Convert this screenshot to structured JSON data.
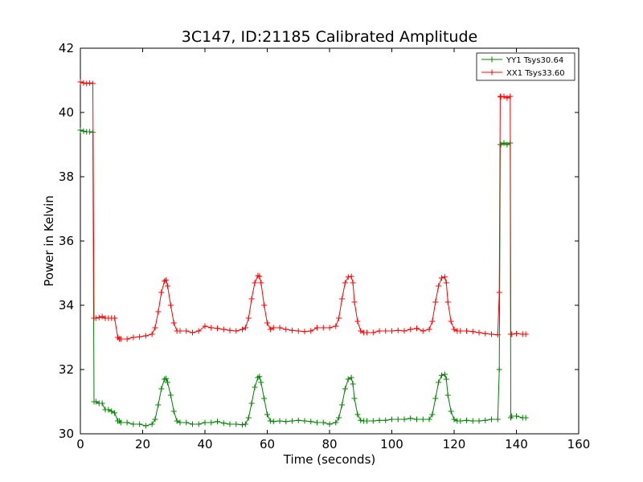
{
  "chart_data": {
    "type": "line",
    "title": "3C147, ID:21185 Calibrated Amplitude",
    "xlabel": "Time (seconds)",
    "ylabel": "Power in Kelvin",
    "xlim": [
      0,
      160
    ],
    "ylim": [
      30,
      42
    ],
    "xticks": [
      "0",
      "20",
      "40",
      "60",
      "80",
      "100",
      "120",
      "140",
      "160"
    ],
    "yticks": [
      "30",
      "32",
      "34",
      "36",
      "38",
      "40",
      "42"
    ],
    "grid": false,
    "legend_position": "top-right",
    "series": [
      {
        "name": "YY1 Tsys30.64",
        "color": "#008000",
        "marker": "+",
        "x": [
          0,
          1,
          2,
          3,
          4,
          4.4,
          5,
          6,
          7,
          8,
          9,
          10,
          11,
          12,
          12.5,
          13,
          15,
          17,
          19,
          21,
          23,
          24,
          25,
          26,
          27,
          27.5,
          28,
          29,
          30,
          31,
          32,
          34,
          36,
          38,
          40,
          42,
          44,
          46,
          48,
          50,
          52,
          53,
          54,
          55,
          56,
          57,
          57.5,
          58,
          59,
          60,
          61,
          62,
          64,
          66,
          68,
          70,
          72,
          74,
          76,
          78,
          80,
          82,
          83,
          84,
          85,
          86,
          87,
          87.5,
          88,
          89,
          90,
          91,
          92,
          94,
          96,
          98,
          100,
          102,
          104,
          106,
          108,
          110,
          112,
          113,
          114,
          115,
          116,
          117,
          117.5,
          118,
          119,
          120,
          121,
          122,
          124,
          126,
          128,
          130,
          132,
          134,
          134.5,
          134.8,
          135,
          136,
          137,
          138,
          138.2,
          138.5,
          140,
          142,
          143
        ],
        "y": [
          39.45,
          39.42,
          39.4,
          39.4,
          39.38,
          31.0,
          31.0,
          30.95,
          30.95,
          30.75,
          30.75,
          30.7,
          30.65,
          30.4,
          30.4,
          30.35,
          30.35,
          30.3,
          30.3,
          30.25,
          30.3,
          30.45,
          30.9,
          31.4,
          31.7,
          31.72,
          31.6,
          31.2,
          30.7,
          30.4,
          30.35,
          30.35,
          30.3,
          30.3,
          30.35,
          30.35,
          30.38,
          30.33,
          30.3,
          30.3,
          30.28,
          30.3,
          30.5,
          30.95,
          31.45,
          31.75,
          31.78,
          31.6,
          31.1,
          30.6,
          30.4,
          30.38,
          30.4,
          30.38,
          30.4,
          30.42,
          30.4,
          30.38,
          30.35,
          30.35,
          30.3,
          30.35,
          30.5,
          30.9,
          31.4,
          31.7,
          31.75,
          31.55,
          31.1,
          30.6,
          30.42,
          30.4,
          30.4,
          30.4,
          30.42,
          30.42,
          30.45,
          30.45,
          30.45,
          30.48,
          30.45,
          30.45,
          30.45,
          30.6,
          31.1,
          31.6,
          31.82,
          31.85,
          31.7,
          31.2,
          30.7,
          30.45,
          30.4,
          30.4,
          30.42,
          30.4,
          30.4,
          30.42,
          30.45,
          30.45,
          32.0,
          39.0,
          39.0,
          39.05,
          39.0,
          39.05,
          30.5,
          30.55,
          30.55,
          30.5,
          30.5
        ]
      },
      {
        "name": "XX1 Tsys33.60",
        "color": "#ff0000",
        "marker": "+",
        "x": [
          0,
          1,
          2,
          3,
          4,
          4.4,
          5,
          6,
          7,
          8,
          9,
          10,
          11,
          12,
          12.5,
          13,
          15,
          17,
          19,
          21,
          23,
          24,
          25,
          26,
          27,
          27.5,
          28,
          29,
          30,
          31,
          32,
          34,
          36,
          38,
          40,
          42,
          44,
          46,
          48,
          50,
          52,
          53,
          54,
          55,
          56,
          57,
          57.5,
          58,
          59,
          60,
          61,
          62,
          64,
          66,
          68,
          70,
          72,
          74,
          76,
          78,
          80,
          82,
          83,
          84,
          85,
          86,
          87,
          87.5,
          88,
          89,
          90,
          91,
          92,
          94,
          96,
          98,
          100,
          102,
          104,
          106,
          108,
          110,
          112,
          113,
          114,
          115,
          116,
          117,
          117.5,
          118,
          119,
          120,
          121,
          122,
          124,
          126,
          128,
          130,
          132,
          134,
          134.5,
          134.8,
          135,
          136,
          137,
          138,
          138.2,
          138.5,
          140,
          142,
          143
        ],
        "y": [
          40.95,
          40.92,
          40.9,
          40.92,
          40.9,
          33.6,
          33.6,
          33.62,
          33.65,
          33.6,
          33.6,
          33.6,
          33.6,
          33.0,
          32.95,
          32.95,
          32.95,
          33.0,
          33.02,
          33.05,
          33.1,
          33.3,
          33.8,
          34.4,
          34.75,
          34.78,
          34.6,
          34.0,
          33.45,
          33.2,
          33.2,
          33.2,
          33.15,
          33.2,
          33.35,
          33.3,
          33.28,
          33.25,
          33.22,
          33.2,
          33.25,
          33.3,
          33.6,
          34.2,
          34.7,
          34.92,
          34.9,
          34.7,
          34.0,
          33.45,
          33.25,
          33.3,
          33.3,
          33.25,
          33.22,
          33.2,
          33.18,
          33.2,
          33.3,
          33.3,
          33.3,
          33.35,
          33.6,
          34.2,
          34.7,
          34.88,
          34.9,
          34.7,
          34.1,
          33.5,
          33.2,
          33.15,
          33.15,
          33.15,
          33.2,
          33.2,
          33.2,
          33.22,
          33.2,
          33.25,
          33.28,
          33.2,
          33.25,
          33.5,
          34.1,
          34.6,
          34.85,
          34.88,
          34.7,
          34.1,
          33.5,
          33.25,
          33.2,
          33.2,
          33.2,
          33.18,
          33.15,
          33.12,
          33.1,
          33.08,
          34.4,
          40.5,
          40.48,
          40.5,
          40.45,
          40.5,
          33.1,
          33.1,
          33.12,
          33.1,
          33.1
        ]
      }
    ]
  }
}
